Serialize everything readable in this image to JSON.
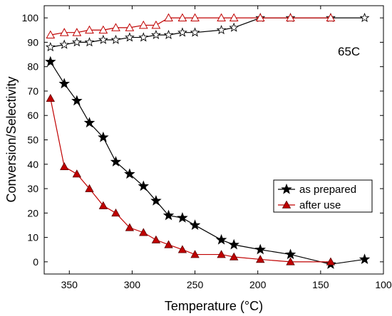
{
  "chart_data": {
    "type": "line",
    "xlabel": "Temperature (°C)",
    "ylabel": "Conversion/Selectivity",
    "xlim": [
      370,
      100
    ],
    "ylim": [
      -5,
      105
    ],
    "x_reversed": true,
    "x_ticks": [
      350,
      300,
      250,
      200,
      150,
      100
    ],
    "y_ticks": [
      0,
      10,
      20,
      30,
      40,
      50,
      60,
      70,
      80,
      90,
      100
    ],
    "annotation": "65C",
    "legend": {
      "placement": "lower-right",
      "entries": [
        "as prepared",
        "after use"
      ]
    },
    "series": [
      {
        "name": "as prepared",
        "role": "conversion",
        "marker": "filled-star",
        "color": "#000000",
        "points": [
          [
            365,
            82
          ],
          [
            354,
            73
          ],
          [
            344,
            66
          ],
          [
            334,
            57
          ],
          [
            323,
            51
          ],
          [
            313,
            41
          ],
          [
            302,
            36
          ],
          [
            291,
            31
          ],
          [
            281,
            25
          ],
          [
            271,
            19
          ],
          [
            260,
            18
          ],
          [
            250,
            15
          ],
          [
            229,
            9
          ],
          [
            219,
            7
          ],
          [
            198,
            5
          ],
          [
            174,
            3
          ],
          [
            142,
            -1
          ],
          [
            115,
            1
          ]
        ]
      },
      {
        "name": "after use",
        "role": "conversion",
        "marker": "filled-triangle",
        "color": "#c00000",
        "points": [
          [
            365,
            67
          ],
          [
            354,
            39
          ],
          [
            344,
            36
          ],
          [
            334,
            30
          ],
          [
            323,
            23
          ],
          [
            313,
            20
          ],
          [
            302,
            14
          ],
          [
            291,
            12
          ],
          [
            281,
            9
          ],
          [
            271,
            7
          ],
          [
            260,
            5
          ],
          [
            250,
            3
          ],
          [
            229,
            3
          ],
          [
            219,
            2
          ],
          [
            198,
            1
          ],
          [
            174,
            0
          ],
          [
            142,
            0
          ]
        ]
      },
      {
        "role": "selectivity",
        "marker": "open-star",
        "color": "#000000",
        "points": [
          [
            365,
            88
          ],
          [
            354,
            89
          ],
          [
            344,
            90
          ],
          [
            334,
            90
          ],
          [
            323,
            91
          ],
          [
            313,
            91
          ],
          [
            302,
            92
          ],
          [
            291,
            92
          ],
          [
            281,
            93
          ],
          [
            271,
            93
          ],
          [
            260,
            94
          ],
          [
            250,
            94
          ],
          [
            229,
            95
          ],
          [
            219,
            96
          ],
          [
            198,
            100
          ],
          [
            174,
            100
          ],
          [
            142,
            100
          ],
          [
            115,
            100
          ]
        ]
      },
      {
        "role": "selectivity",
        "marker": "open-triangle",
        "color": "#c00000",
        "points": [
          [
            365,
            93
          ],
          [
            354,
            94
          ],
          [
            344,
            94
          ],
          [
            334,
            95
          ],
          [
            323,
            95
          ],
          [
            313,
            96
          ],
          [
            302,
            96
          ],
          [
            291,
            97
          ],
          [
            281,
            97
          ],
          [
            271,
            100
          ],
          [
            260,
            100
          ],
          [
            250,
            100
          ],
          [
            229,
            100
          ],
          [
            219,
            100
          ],
          [
            198,
            100
          ],
          [
            174,
            100
          ],
          [
            142,
            100
          ]
        ]
      }
    ]
  }
}
